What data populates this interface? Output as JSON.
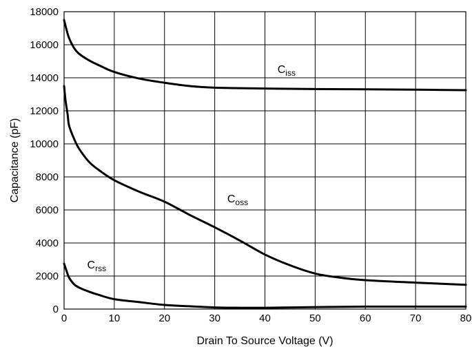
{
  "chart_data": {
    "type": "line",
    "xlabel": "Drain To Source Voltage (V)",
    "ylabel": "Capacitance (pF)",
    "xlim": [
      0,
      80
    ],
    "ylim": [
      0,
      18000
    ],
    "grid": true,
    "x_ticks": [
      "0",
      "10",
      "20",
      "30",
      "40",
      "50",
      "60",
      "70",
      "80"
    ],
    "y_ticks": [
      "0",
      "2000",
      "4000",
      "6000",
      "8000",
      "10000",
      "12000",
      "14000",
      "16000",
      "18000"
    ],
    "series": [
      {
        "name": "Ciss",
        "label_main": "C",
        "label_sub": "iss",
        "x": [
          0,
          0.5,
          1,
          2,
          3,
          5,
          7,
          10,
          15,
          20,
          25,
          30,
          40,
          50,
          60,
          70,
          80
        ],
        "y": [
          17500,
          16900,
          16400,
          15800,
          15450,
          15050,
          14750,
          14350,
          13950,
          13700,
          13500,
          13400,
          13350,
          13320,
          13300,
          13280,
          13250
        ]
      },
      {
        "name": "Coss",
        "label_main": "C",
        "label_sub": "oss",
        "x": [
          0,
          0.3,
          0.7,
          1,
          2,
          3,
          5,
          7,
          10,
          15,
          20,
          25,
          30,
          35,
          40,
          45,
          50,
          55,
          60,
          70,
          80
        ],
        "y": [
          13500,
          12600,
          11800,
          11100,
          10300,
          9700,
          8900,
          8400,
          7800,
          7100,
          6500,
          5700,
          4950,
          4150,
          3300,
          2650,
          2150,
          1900,
          1750,
          1600,
          1470
        ]
      },
      {
        "name": "Crss",
        "label_main": "C",
        "label_sub": "rss",
        "x": [
          0,
          0.5,
          1,
          2,
          3,
          5,
          7,
          10,
          15,
          20,
          25,
          30,
          35,
          40,
          50,
          60,
          70,
          80
        ],
        "y": [
          2750,
          2300,
          1900,
          1500,
          1300,
          1050,
          850,
          600,
          420,
          250,
          170,
          100,
          80,
          80,
          120,
          150,
          150,
          150
        ]
      }
    ]
  }
}
